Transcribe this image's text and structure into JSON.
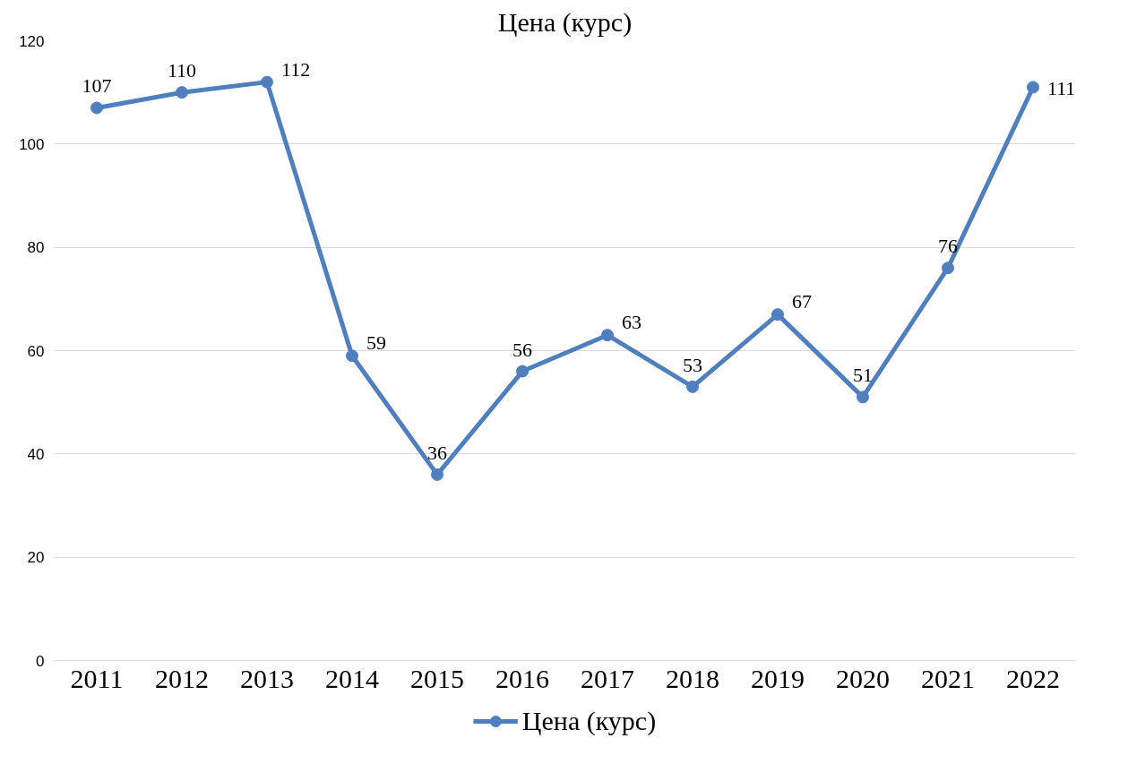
{
  "chart_data": {
    "type": "line",
    "title": "Цена (курс)",
    "categories": [
      "2011",
      "2012",
      "2013",
      "2014",
      "2015",
      "2016",
      "2017",
      "2018",
      "2019",
      "2020",
      "2021",
      "2022"
    ],
    "series": [
      {
        "name": "Цена (курс)",
        "color": "#4f7fbf",
        "values": [
          107,
          110,
          112,
          59,
          36,
          56,
          63,
          53,
          67,
          51,
          76,
          111
        ]
      }
    ],
    "ylim": [
      0,
      120
    ],
    "yticks": [
      0,
      20,
      40,
      60,
      80,
      100,
      120
    ],
    "grid": "y",
    "legend": "bottom",
    "marker": "circle",
    "line_style": "solid",
    "data_labels": true
  }
}
